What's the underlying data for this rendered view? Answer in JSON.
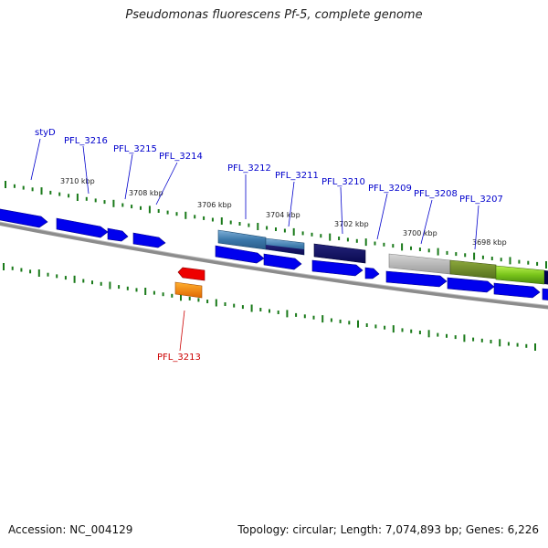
{
  "title": "Pseudomonas fluorescens Pf-5, complete genome",
  "accession": "Accession: NC_004129",
  "stats": "Topology: circular; Length: 7,074,893 bp; Genes: 6,226",
  "colors": {
    "tick": "#1a7a1a",
    "gene_forward": "#0000ee",
    "label_blue": "#0000cc",
    "label_red": "#cc0000",
    "backbone": "#888888"
  },
  "kbp_labels": [
    "3710 kbp",
    "3708 kbp",
    "3706 kbp",
    "3704 kbp",
    "3702 kbp",
    "3700 kbp",
    "3698 kbp"
  ],
  "genes": [
    {
      "name": "styD"
    },
    {
      "name": "PFL_3216"
    },
    {
      "name": "PFL_3215"
    },
    {
      "name": "PFL_3214"
    },
    {
      "name": "PFL_3213"
    },
    {
      "name": "PFL_3212"
    },
    {
      "name": "PFL_3211"
    },
    {
      "name": "PFL_3210"
    },
    {
      "name": "PFL_3209"
    },
    {
      "name": "PFL_3208"
    },
    {
      "name": "PFL_3207"
    }
  ]
}
